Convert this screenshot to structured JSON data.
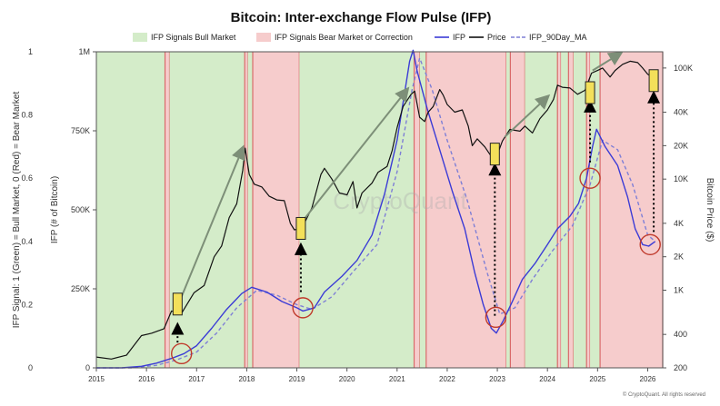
{
  "chart_data": {
    "type": "line",
    "title": "Bitcoin: Inter-exchange Flow Pulse (IFP)",
    "legend": {
      "placement": "top",
      "entries": [
        {
          "label": "IFP Signals Bull Market",
          "kind": "patch",
          "color": "#d4ecc9"
        },
        {
          "label": "IFP Signals Bear Market or Correction",
          "kind": "patch",
          "color": "#f6cccc"
        },
        {
          "label": "IFP",
          "kind": "line",
          "color": "#3b3bd6",
          "dash": false
        },
        {
          "label": "Price",
          "kind": "line",
          "color": "#111111",
          "dash": false
        },
        {
          "label": "IFP_90Day_MA",
          "kind": "line",
          "color": "#7f7fd6",
          "dash": true
        }
      ]
    },
    "x_axis": {
      "range": [
        2015.0,
        2026.3
      ],
      "tick_labels": [
        "2015",
        "2016",
        "2017",
        "2018",
        "2019",
        "2020",
        "2021",
        "2022",
        "2023",
        "2024",
        "2025",
        "2026"
      ],
      "tick_values": [
        2015,
        2016,
        2017,
        2018,
        2019,
        2020,
        2021,
        2022,
        2023,
        2024,
        2025,
        2026
      ]
    },
    "y_left_outer": {
      "label": "IFP Signal: 1 (Green) = Bull Market, 0 (Red) = Bear Market",
      "range": [
        0,
        1
      ],
      "tick_labels": [
        "0",
        "0.2",
        "0.4",
        "0.6",
        "0.8",
        "1"
      ],
      "tick_values": [
        0,
        0.2,
        0.4,
        0.6,
        0.8,
        1.0
      ]
    },
    "y_left_inner": {
      "label": "IFP (# of Bitcoin)",
      "range": [
        0,
        1000000
      ],
      "tick_labels": [
        "0",
        "250K",
        "500K",
        "750K",
        "1M"
      ],
      "tick_values": [
        0,
        250000,
        500000,
        750000,
        1000000
      ]
    },
    "y_right": {
      "label": "Bitcoin Price ($)",
      "scale": "log",
      "range": [
        200,
        140000
      ],
      "tick_labels": [
        "200",
        "400",
        "1K",
        "2K",
        "4K",
        "10K",
        "20K",
        "40K",
        "100K"
      ],
      "tick_values": [
        200,
        400,
        1000,
        2000,
        4000,
        10000,
        20000,
        40000,
        100000
      ]
    },
    "signal_regions": [
      {
        "signal": 1,
        "start": 2015.0,
        "end": 2016.37
      },
      {
        "signal": 0,
        "start": 2016.37,
        "end": 2016.46
      },
      {
        "signal": 1,
        "start": 2016.46,
        "end": 2017.96
      },
      {
        "signal": 0,
        "start": 2017.96,
        "end": 2018.02
      },
      {
        "signal": 1,
        "start": 2018.02,
        "end": 2018.12
      },
      {
        "signal": 0,
        "start": 2018.12,
        "end": 2019.05
      },
      {
        "signal": 1,
        "start": 2019.05,
        "end": 2021.34
      },
      {
        "signal": 0,
        "start": 2021.34,
        "end": 2021.45
      },
      {
        "signal": 1,
        "start": 2021.45,
        "end": 2021.58
      },
      {
        "signal": 0,
        "start": 2021.58,
        "end": 2023.18
      },
      {
        "signal": 1,
        "start": 2023.18,
        "end": 2023.26
      },
      {
        "signal": 0,
        "start": 2023.26,
        "end": 2023.55
      },
      {
        "signal": 1,
        "start": 2023.55,
        "end": 2024.2
      },
      {
        "signal": 0,
        "start": 2024.2,
        "end": 2024.27
      },
      {
        "signal": 1,
        "start": 2024.27,
        "end": 2024.42
      },
      {
        "signal": 0,
        "start": 2024.42,
        "end": 2024.52
      },
      {
        "signal": 1,
        "start": 2024.52,
        "end": 2024.78
      },
      {
        "signal": 0,
        "start": 2024.78,
        "end": 2024.85
      },
      {
        "signal": 1,
        "start": 2024.85,
        "end": 2025.05
      },
      {
        "signal": 0,
        "start": 2025.05,
        "end": 2026.3
      }
    ],
    "series": [
      {
        "name": "Price",
        "axis": "right",
        "color": "#111111",
        "points": [
          [
            2015.0,
            250
          ],
          [
            2015.3,
            240
          ],
          [
            2015.6,
            260
          ],
          [
            2015.9,
            390
          ],
          [
            2016.1,
            410
          ],
          [
            2016.35,
            450
          ],
          [
            2016.5,
            650
          ],
          [
            2016.7,
            620
          ],
          [
            2016.95,
            950
          ],
          [
            2017.15,
            1100
          ],
          [
            2017.35,
            2000
          ],
          [
            2017.5,
            2500
          ],
          [
            2017.65,
            4500
          ],
          [
            2017.8,
            6000
          ],
          [
            2017.92,
            12000
          ],
          [
            2017.97,
            19000
          ],
          [
            2018.05,
            11000
          ],
          [
            2018.15,
            9000
          ],
          [
            2018.3,
            8500
          ],
          [
            2018.45,
            7000
          ],
          [
            2018.6,
            6500
          ],
          [
            2018.75,
            6400
          ],
          [
            2018.87,
            4000
          ],
          [
            2018.95,
            3500
          ],
          [
            2019.1,
            3600
          ],
          [
            2019.3,
            5500
          ],
          [
            2019.48,
            11000
          ],
          [
            2019.55,
            12500
          ],
          [
            2019.7,
            10000
          ],
          [
            2019.85,
            7500
          ],
          [
            2020.0,
            7200
          ],
          [
            2020.12,
            9500
          ],
          [
            2020.2,
            5500
          ],
          [
            2020.3,
            7500
          ],
          [
            2020.5,
            9200
          ],
          [
            2020.62,
            11500
          ],
          [
            2020.8,
            13000
          ],
          [
            2020.9,
            18000
          ],
          [
            2021.0,
            29000
          ],
          [
            2021.12,
            45000
          ],
          [
            2021.28,
            58000
          ],
          [
            2021.35,
            62000
          ],
          [
            2021.45,
            36000
          ],
          [
            2021.55,
            33000
          ],
          [
            2021.62,
            40000
          ],
          [
            2021.72,
            45000
          ],
          [
            2021.85,
            64000
          ],
          [
            2021.92,
            57000
          ],
          [
            2022.0,
            47000
          ],
          [
            2022.15,
            40000
          ],
          [
            2022.3,
            42000
          ],
          [
            2022.42,
            30000
          ],
          [
            2022.5,
            20000
          ],
          [
            2022.6,
            23000
          ],
          [
            2022.75,
            19500
          ],
          [
            2022.86,
            16500
          ],
          [
            2023.0,
            16600
          ],
          [
            2023.1,
            22000
          ],
          [
            2023.25,
            28000
          ],
          [
            2023.45,
            27000
          ],
          [
            2023.55,
            30000
          ],
          [
            2023.7,
            26000
          ],
          [
            2023.85,
            35000
          ],
          [
            2024.0,
            42000
          ],
          [
            2024.12,
            52000
          ],
          [
            2024.2,
            70000
          ],
          [
            2024.3,
            67000
          ],
          [
            2024.45,
            66000
          ],
          [
            2024.6,
            58000
          ],
          [
            2024.75,
            63000
          ],
          [
            2024.88,
            90000
          ],
          [
            2025.0,
            95000
          ],
          [
            2025.1,
            100000
          ],
          [
            2025.25,
            83000
          ],
          [
            2025.35,
            95000
          ],
          [
            2025.5,
            108000
          ],
          [
            2025.65,
            115000
          ],
          [
            2025.8,
            112000
          ],
          [
            2025.9,
            100000
          ],
          [
            2026.0,
            88000
          ],
          [
            2026.12,
            80000
          ]
        ]
      },
      {
        "name": "IFP",
        "axis": "left_inner",
        "color": "#3b3bd6",
        "points": [
          [
            2015.0,
            0
          ],
          [
            2015.5,
            0
          ],
          [
            2015.9,
            5000
          ],
          [
            2016.2,
            15000
          ],
          [
            2016.5,
            30000
          ],
          [
            2016.75,
            45000
          ],
          [
            2017.0,
            70000
          ],
          [
            2017.3,
            125000
          ],
          [
            2017.6,
            185000
          ],
          [
            2017.9,
            235000
          ],
          [
            2018.1,
            255000
          ],
          [
            2018.4,
            240000
          ],
          [
            2018.7,
            210000
          ],
          [
            2019.0,
            190000
          ],
          [
            2019.12,
            180000
          ],
          [
            2019.35,
            190000
          ],
          [
            2019.55,
            240000
          ],
          [
            2019.9,
            290000
          ],
          [
            2020.2,
            340000
          ],
          [
            2020.5,
            420000
          ],
          [
            2020.75,
            550000
          ],
          [
            2021.0,
            720000
          ],
          [
            2021.15,
            870000
          ],
          [
            2021.25,
            970000
          ],
          [
            2021.32,
            1005000
          ],
          [
            2021.4,
            940000
          ],
          [
            2021.6,
            820000
          ],
          [
            2021.85,
            690000
          ],
          [
            2022.1,
            560000
          ],
          [
            2022.35,
            440000
          ],
          [
            2022.55,
            300000
          ],
          [
            2022.72,
            200000
          ],
          [
            2022.88,
            125000
          ],
          [
            2022.98,
            110000
          ],
          [
            2023.12,
            150000
          ],
          [
            2023.3,
            210000
          ],
          [
            2023.5,
            280000
          ],
          [
            2023.75,
            330000
          ],
          [
            2024.0,
            390000
          ],
          [
            2024.2,
            440000
          ],
          [
            2024.45,
            480000
          ],
          [
            2024.62,
            520000
          ],
          [
            2024.78,
            600000
          ],
          [
            2024.9,
            700000
          ],
          [
            2024.98,
            755000
          ],
          [
            2025.15,
            700000
          ],
          [
            2025.4,
            640000
          ],
          [
            2025.6,
            540000
          ],
          [
            2025.75,
            440000
          ],
          [
            2025.9,
            390000
          ],
          [
            2026.02,
            385000
          ],
          [
            2026.15,
            400000
          ]
        ]
      },
      {
        "name": "IFP_90Day_MA",
        "axis": "left_inner",
        "color": "#7f7fd6",
        "points": [
          [
            2015.0,
            0
          ],
          [
            2015.7,
            0
          ],
          [
            2016.2,
            8000
          ],
          [
            2016.6,
            25000
          ],
          [
            2017.0,
            50000
          ],
          [
            2017.4,
            110000
          ],
          [
            2017.8,
            190000
          ],
          [
            2018.2,
            245000
          ],
          [
            2018.6,
            230000
          ],
          [
            2019.0,
            200000
          ],
          [
            2019.3,
            185000
          ],
          [
            2019.7,
            225000
          ],
          [
            2020.1,
            300000
          ],
          [
            2020.6,
            390000
          ],
          [
            2021.0,
            620000
          ],
          [
            2021.3,
            880000
          ],
          [
            2021.45,
            980000
          ],
          [
            2021.7,
            880000
          ],
          [
            2022.0,
            720000
          ],
          [
            2022.4,
            530000
          ],
          [
            2022.8,
            300000
          ],
          [
            2023.05,
            170000
          ],
          [
            2023.35,
            190000
          ],
          [
            2023.7,
            280000
          ],
          [
            2024.1,
            370000
          ],
          [
            2024.5,
            450000
          ],
          [
            2024.85,
            580000
          ],
          [
            2025.1,
            720000
          ],
          [
            2025.4,
            690000
          ],
          [
            2025.7,
            580000
          ],
          [
            2026.0,
            420000
          ],
          [
            2026.15,
            400000
          ]
        ]
      }
    ],
    "annotations": {
      "highlight_boxes": [
        {
          "x": 2016.62,
          "price": 750
        },
        {
          "x": 2019.08,
          "price": 3600
        },
        {
          "x": 2022.95,
          "price": 16800
        },
        {
          "x": 2024.85,
          "price": 60000
        },
        {
          "x": 2026.12,
          "price": 77000
        }
      ],
      "dotted_arrows": [
        {
          "x": 2016.62,
          "from_ifp": 80000,
          "to_price": 480
        },
        {
          "x": 2019.08,
          "from_ifp": 240000,
          "to_price": 2500
        },
        {
          "x": 2022.95,
          "from_ifp": 165000,
          "to_price": 13000
        },
        {
          "x": 2024.85,
          "from_ifp": 650000,
          "to_price": 48000
        },
        {
          "x": 2026.12,
          "from_ifp": 430000,
          "to_price": 58000
        }
      ],
      "circles": [
        {
          "x": 2016.7,
          "ifp": 45000
        },
        {
          "x": 2019.12,
          "ifp": 190000
        },
        {
          "x": 2022.97,
          "ifp": 160000
        },
        {
          "x": 2024.85,
          "ifp": 600000
        },
        {
          "x": 2026.05,
          "ifp": 390000
        }
      ],
      "trend_arrows": [
        {
          "from": [
            2016.55,
            600
          ],
          "to": [
            2017.92,
            19000
          ]
        },
        {
          "from": [
            2019.08,
            4000
          ],
          "to": [
            2021.2,
            64000
          ]
        },
        {
          "from": [
            2023.15,
            24000
          ],
          "to": [
            2024.0,
            55000
          ]
        },
        {
          "from": [
            2024.9,
            95000
          ],
          "to": [
            2025.45,
            135000
          ]
        }
      ],
      "watermark": "CryptoQuant",
      "footer_credit": "© CryptoQuant. All rights reserved"
    }
  }
}
